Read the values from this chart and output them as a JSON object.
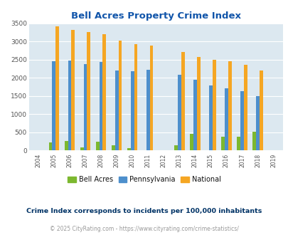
{
  "title": "Bell Acres Property Crime Index",
  "years": [
    2004,
    2005,
    2006,
    2007,
    2008,
    2009,
    2010,
    2011,
    2012,
    2013,
    2014,
    2015,
    2016,
    2017,
    2018,
    2019
  ],
  "bell_acres": [
    0,
    220,
    250,
    80,
    240,
    140,
    70,
    0,
    0,
    145,
    450,
    0,
    380,
    380,
    520,
    0
  ],
  "pennsylvania": [
    0,
    2460,
    2480,
    2380,
    2440,
    2210,
    2185,
    2225,
    0,
    2080,
    1940,
    1800,
    1720,
    1640,
    1490,
    0
  ],
  "national": [
    0,
    3430,
    3330,
    3260,
    3200,
    3030,
    2940,
    2900,
    0,
    2720,
    2580,
    2490,
    2460,
    2360,
    2200,
    0
  ],
  "bell_acres_color": "#7cb82f",
  "pennsylvania_color": "#4d8fcc",
  "national_color": "#f5a623",
  "bg_color": "#dce8f0",
  "title_color": "#1155aa",
  "ylabel_max": 3500,
  "yticks": [
    0,
    500,
    1000,
    1500,
    2000,
    2500,
    3000,
    3500
  ],
  "subtitle": "Crime Index corresponds to incidents per 100,000 inhabitants",
  "footer": "© 2025 CityRating.com - https://www.cityrating.com/crime-statistics/",
  "subtitle_color": "#003366",
  "footer_color": "#999999",
  "grid_color": "#ffffff"
}
